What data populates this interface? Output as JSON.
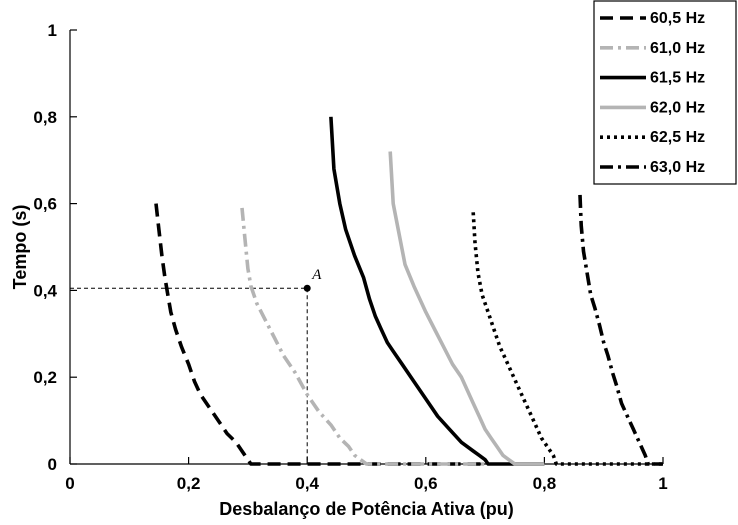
{
  "chart_data": {
    "type": "line",
    "xlabel": "Desbalanço de Potência Ativa (pu)",
    "ylabel": "Tempo (s)",
    "xlim": [
      0,
      1.0
    ],
    "ylim": [
      0,
      1.0
    ],
    "xticks": [
      0,
      0.2,
      0.4,
      0.6,
      0.8,
      1
    ],
    "xtick_labels": [
      "0",
      "0,2",
      "0,4",
      "0,6",
      "0,8",
      "1"
    ],
    "yticks": [
      0,
      0.2,
      0.4,
      0.6,
      0.8,
      1
    ],
    "ytick_labels": [
      "0",
      "0,2",
      "0,4",
      "0,6",
      "0,8",
      "1"
    ],
    "grid": false,
    "legend_position": "top-right",
    "series": [
      {
        "name": "60,5 Hz",
        "color": "#000000",
        "style": "dashed",
        "x": [
          0.145,
          0.15,
          0.155,
          0.16,
          0.165,
          0.17,
          0.178,
          0.188,
          0.2,
          0.21,
          0.22,
          0.235,
          0.25,
          0.265,
          0.28,
          0.295,
          0.305,
          0.33,
          0.4,
          0.6,
          0.7
        ],
        "y": [
          0.6,
          0.54,
          0.48,
          0.43,
          0.39,
          0.35,
          0.31,
          0.27,
          0.23,
          0.19,
          0.16,
          0.13,
          0.1,
          0.07,
          0.05,
          0.02,
          0.0,
          0.0,
          0.0,
          0.0,
          0.0
        ]
      },
      {
        "name": "61,0 Hz",
        "color": "#b4b4b4",
        "style": "dashdot",
        "x": [
          0.29,
          0.295,
          0.3,
          0.305,
          0.315,
          0.33,
          0.345,
          0.36,
          0.38,
          0.4,
          0.42,
          0.44,
          0.455,
          0.47,
          0.48,
          0.49,
          0.5,
          0.55,
          0.6,
          0.7
        ],
        "y": [
          0.59,
          0.52,
          0.45,
          0.41,
          0.37,
          0.33,
          0.29,
          0.25,
          0.21,
          0.16,
          0.12,
          0.09,
          0.06,
          0.04,
          0.02,
          0.01,
          0.0,
          0.0,
          0.0,
          0.0
        ]
      },
      {
        "name": "61,5 Hz",
        "color": "#000000",
        "style": "solid",
        "x": [
          0.44,
          0.445,
          0.455,
          0.465,
          0.48,
          0.495,
          0.505,
          0.515,
          0.525,
          0.535,
          0.545,
          0.56,
          0.58,
          0.6,
          0.62,
          0.64,
          0.66,
          0.68,
          0.69,
          0.7,
          0.705,
          0.72,
          0.75,
          0.8
        ],
        "y": [
          0.8,
          0.68,
          0.6,
          0.54,
          0.48,
          0.43,
          0.38,
          0.34,
          0.31,
          0.28,
          0.26,
          0.23,
          0.19,
          0.15,
          0.11,
          0.08,
          0.05,
          0.03,
          0.02,
          0.01,
          0.0,
          0.0,
          0.0,
          0.0
        ]
      },
      {
        "name": "62,0 Hz",
        "color": "#b4b4b4",
        "style": "solid",
        "x": [
          0.54,
          0.545,
          0.555,
          0.565,
          0.58,
          0.6,
          0.615,
          0.63,
          0.645,
          0.66,
          0.67,
          0.68,
          0.69,
          0.7,
          0.71,
          0.72,
          0.73,
          0.74,
          0.75,
          0.8
        ],
        "y": [
          0.72,
          0.6,
          0.53,
          0.46,
          0.41,
          0.35,
          0.31,
          0.27,
          0.23,
          0.2,
          0.17,
          0.14,
          0.11,
          0.08,
          0.06,
          0.04,
          0.02,
          0.01,
          0.0,
          0.0
        ]
      },
      {
        "name": "62,5 Hz",
        "color": "#000000",
        "style": "dotted",
        "x": [
          0.68,
          0.683,
          0.688,
          0.695,
          0.705,
          0.715,
          0.725,
          0.735,
          0.745,
          0.755,
          0.765,
          0.775,
          0.785,
          0.795,
          0.81,
          0.815,
          0.82,
          0.83,
          0.9,
          1.0
        ],
        "y": [
          0.58,
          0.51,
          0.44,
          0.39,
          0.35,
          0.31,
          0.27,
          0.24,
          0.21,
          0.18,
          0.15,
          0.12,
          0.09,
          0.06,
          0.03,
          0.02,
          0.0,
          0.0,
          0.0,
          0.0
        ]
      },
      {
        "name": "63,0 Hz",
        "color": "#000000",
        "style": "dashdot",
        "x": [
          0.86,
          0.862,
          0.866,
          0.872,
          0.878,
          0.885,
          0.893,
          0.9,
          0.907,
          0.915,
          0.922,
          0.93,
          0.94,
          0.95,
          0.96,
          0.97,
          0.975,
          1.0
        ],
        "y": [
          0.62,
          0.55,
          0.49,
          0.44,
          0.39,
          0.36,
          0.32,
          0.28,
          0.25,
          0.21,
          0.18,
          0.14,
          0.11,
          0.08,
          0.05,
          0.02,
          0.0,
          0.0
        ]
      }
    ],
    "annotations": [
      {
        "label": "A",
        "x": 0.4,
        "y": 0.405
      }
    ]
  }
}
